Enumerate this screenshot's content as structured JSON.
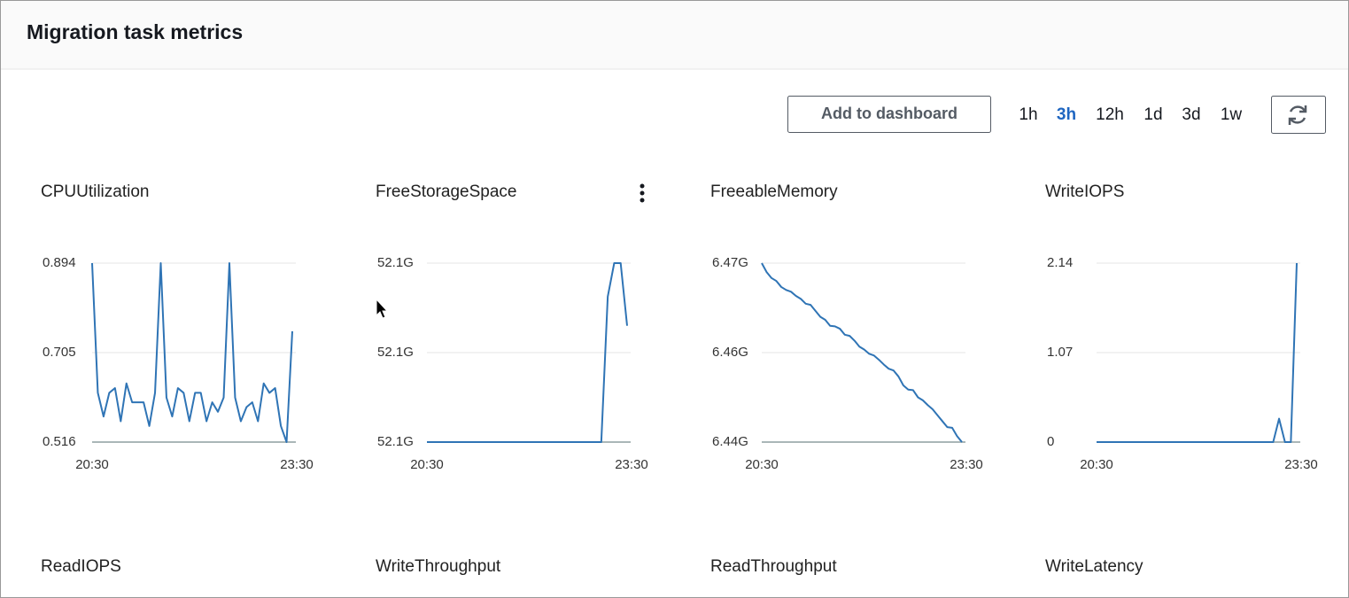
{
  "header": {
    "title": "Migration task metrics"
  },
  "toolbar": {
    "add_button": "Add to dashboard",
    "ranges": [
      "1h",
      "3h",
      "12h",
      "1d",
      "3d",
      "1w"
    ],
    "selected_range": "3h"
  },
  "chart_data": [
    {
      "type": "line",
      "title": "CPUUtilization",
      "color": "#2f74b5",
      "x_labels": [
        "20:30",
        "23:30"
      ],
      "values": [
        0.894,
        0.62,
        0.57,
        0.62,
        0.63,
        0.56,
        0.64,
        0.6,
        0.6,
        0.6,
        0.55,
        0.62,
        0.894,
        0.61,
        0.57,
        0.63,
        0.62,
        0.56,
        0.62,
        0.62,
        0.56,
        0.6,
        0.58,
        0.61,
        0.894,
        0.61,
        0.56,
        0.59,
        0.6,
        0.56,
        0.64,
        0.62,
        0.63,
        0.55,
        0.516,
        0.75
      ],
      "ylim": [
        0.516,
        0.894
      ],
      "yticks": [
        0.516,
        0.705,
        0.894
      ]
    },
    {
      "type": "line",
      "title": "FreeStorageSpace",
      "color": "#2f74b5",
      "x_labels": [
        "20:30",
        "23:30"
      ],
      "values": [
        52.1,
        52.1,
        52.1,
        52.1,
        52.1,
        52.1,
        52.1,
        52.1,
        52.1,
        52.1,
        52.1,
        52.1,
        52.1,
        52.1,
        52.1,
        52.1,
        52.1,
        52.1,
        52.1,
        52.1,
        52.1,
        52.1,
        52.1,
        52.1,
        52.1,
        52.1,
        52.1,
        52.1,
        52.1325,
        52.14,
        52.14,
        52.126
      ],
      "ylim": [
        52.1,
        52.14
      ],
      "yticks": [
        {
          "value": 52.1,
          "label": "52.1G"
        },
        {
          "value": 52.12,
          "label": "52.1G"
        },
        {
          "value": 52.14,
          "label": "52.1G"
        }
      ]
    },
    {
      "type": "line",
      "title": "FreeableMemory",
      "color": "#2f74b5",
      "x_labels": [
        "20:30",
        "23:30"
      ],
      "values": [
        6.47,
        6.4685,
        6.4675,
        6.467,
        6.466,
        6.4655,
        6.4652,
        6.4645,
        6.464,
        6.4632,
        6.463,
        6.462,
        6.461,
        6.4605,
        6.4595,
        6.4594,
        6.459,
        6.458,
        6.4578,
        6.457,
        6.456,
        6.4555,
        6.4548,
        6.4545,
        6.4538,
        6.453,
        6.4523,
        6.452,
        6.451,
        6.4495,
        6.4488,
        6.4487,
        6.4475,
        6.447,
        6.4462,
        6.4455,
        6.4445,
        6.4435,
        6.4425,
        6.4424,
        6.441,
        6.44
      ],
      "ylim": [
        6.44,
        6.47
      ],
      "yticks": [
        {
          "value": 6.44,
          "label": "6.44G"
        },
        {
          "value": 6.455,
          "label": "6.46G"
        },
        {
          "value": 6.47,
          "label": "6.47G"
        }
      ]
    },
    {
      "type": "line",
      "title": "WriteIOPS",
      "color": "#2f74b5",
      "x_labels": [
        "20:30",
        "23:30"
      ],
      "values": [
        0,
        0,
        0,
        0,
        0,
        0,
        0,
        0,
        0,
        0,
        0,
        0,
        0,
        0,
        0,
        0,
        0,
        0,
        0,
        0,
        0,
        0,
        0,
        0,
        0,
        0,
        0,
        0,
        0,
        0,
        0,
        0.28,
        0,
        0,
        2.14
      ],
      "ylim": [
        0,
        2.14
      ],
      "yticks": [
        0,
        1.07,
        2.14
      ]
    },
    {
      "type": "line",
      "title": "ReadIOPS"
    },
    {
      "type": "line",
      "title": "WriteThroughput"
    },
    {
      "type": "line",
      "title": "ReadThroughput"
    },
    {
      "type": "line",
      "title": "WriteLatency"
    }
  ]
}
